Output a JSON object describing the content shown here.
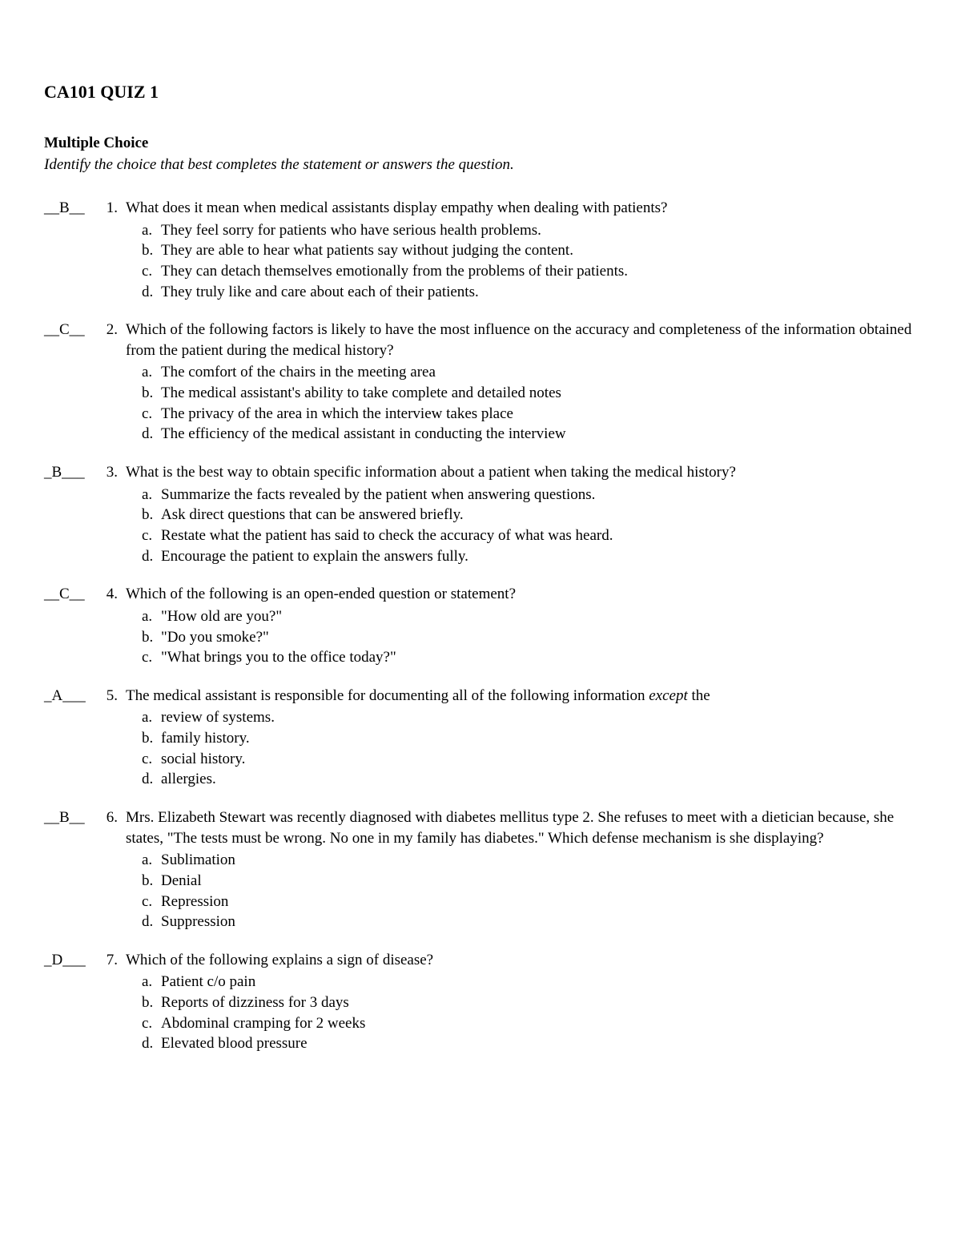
{
  "title": "CA101 QUIZ 1",
  "section_header": "Multiple Choice",
  "instructions": "Identify the choice that best completes the statement or answers the question.",
  "questions": [
    {
      "answer": "__B__",
      "number": "1.",
      "text": "What does it mean when medical assistants display empathy when dealing with patients?",
      "text_suffix": "",
      "choices": [
        {
          "letter": "a.",
          "text": "They feel sorry for patients who have serious health problems."
        },
        {
          "letter": "b.",
          "text": "They are able to hear what patients say without judging the content."
        },
        {
          "letter": "c.",
          "text": "They can detach themselves emotionally from the problems of their patients."
        },
        {
          "letter": "d.",
          "text": "They truly like and care about each of their patients."
        }
      ]
    },
    {
      "answer": "__C__",
      "number": "2.",
      "text": "Which of the following factors is likely to have the most influence on the accuracy and completeness of the information obtained from the patient during the medical history?",
      "text_suffix": "",
      "choices": [
        {
          "letter": "a.",
          "text": "The comfort of the chairs in the meeting area"
        },
        {
          "letter": "b.",
          "text": "The medical assistant's ability to take complete and detailed notes"
        },
        {
          "letter": "c.",
          "text": "The privacy of the area in which the interview takes place"
        },
        {
          "letter": "d.",
          "text": "The efficiency of the medical assistant in conducting the interview"
        }
      ]
    },
    {
      "answer": "_B___",
      "number": "3.",
      "text": "What is the best way to obtain specific information about a patient when taking the medical history?",
      "text_suffix": "",
      "choices": [
        {
          "letter": "a.",
          "text": "Summarize the facts revealed by the patient when answering questions."
        },
        {
          "letter": "b.",
          "text": "Ask direct questions that can be answered briefly."
        },
        {
          "letter": "c.",
          "text": "Restate what the patient has said to check the accuracy of what was heard."
        },
        {
          "letter": "d.",
          "text": "Encourage the patient to explain the answers fully."
        }
      ]
    },
    {
      "answer": "__C__",
      "number": "4.",
      "text": "Which of the following is an open-ended question or statement?",
      "text_suffix": "",
      "choices": [
        {
          "letter": "a.",
          "text": "\"How old are you?\""
        },
        {
          "letter": "b.",
          "text": "\"Do you smoke?\""
        },
        {
          "letter": "c.",
          "text": "\"What brings you to the office today?\""
        }
      ]
    },
    {
      "answer": "_A___",
      "number": "5.",
      "text": "The medical assistant is responsible for documenting all of the following information ",
      "text_italic": "except",
      "text_suffix": " the",
      "choices": [
        {
          "letter": "a.",
          "text": "review of systems."
        },
        {
          "letter": "b.",
          "text": "family history."
        },
        {
          "letter": "c.",
          "text": "social history."
        },
        {
          "letter": "d.",
          "text": "allergies."
        }
      ]
    },
    {
      "answer": "__B__",
      "number": "6.",
      "text": "Mrs. Elizabeth Stewart was recently diagnosed with diabetes mellitus type 2. She refuses to meet with a dietician because, she states, \"The tests must be wrong. No one in my family has diabetes.\" Which defense mechanism is she displaying?",
      "text_suffix": "",
      "choices": [
        {
          "letter": "a.",
          "text": "Sublimation"
        },
        {
          "letter": "b.",
          "text": "Denial"
        },
        {
          "letter": "c.",
          "text": "Repression"
        },
        {
          "letter": "d.",
          "text": "Suppression"
        }
      ]
    },
    {
      "answer": "_D___",
      "number": "7.",
      "text": "Which of the following explains a sign of disease?",
      "text_suffix": "",
      "choices": [
        {
          "letter": "a.",
          "text": "Patient c/o pain"
        },
        {
          "letter": "b.",
          "text": "Reports of dizziness for 3 days"
        },
        {
          "letter": "c.",
          "text": "Abdominal cramping for 2 weeks"
        },
        {
          "letter": "d.",
          "text": "Elevated blood pressure"
        }
      ]
    }
  ]
}
